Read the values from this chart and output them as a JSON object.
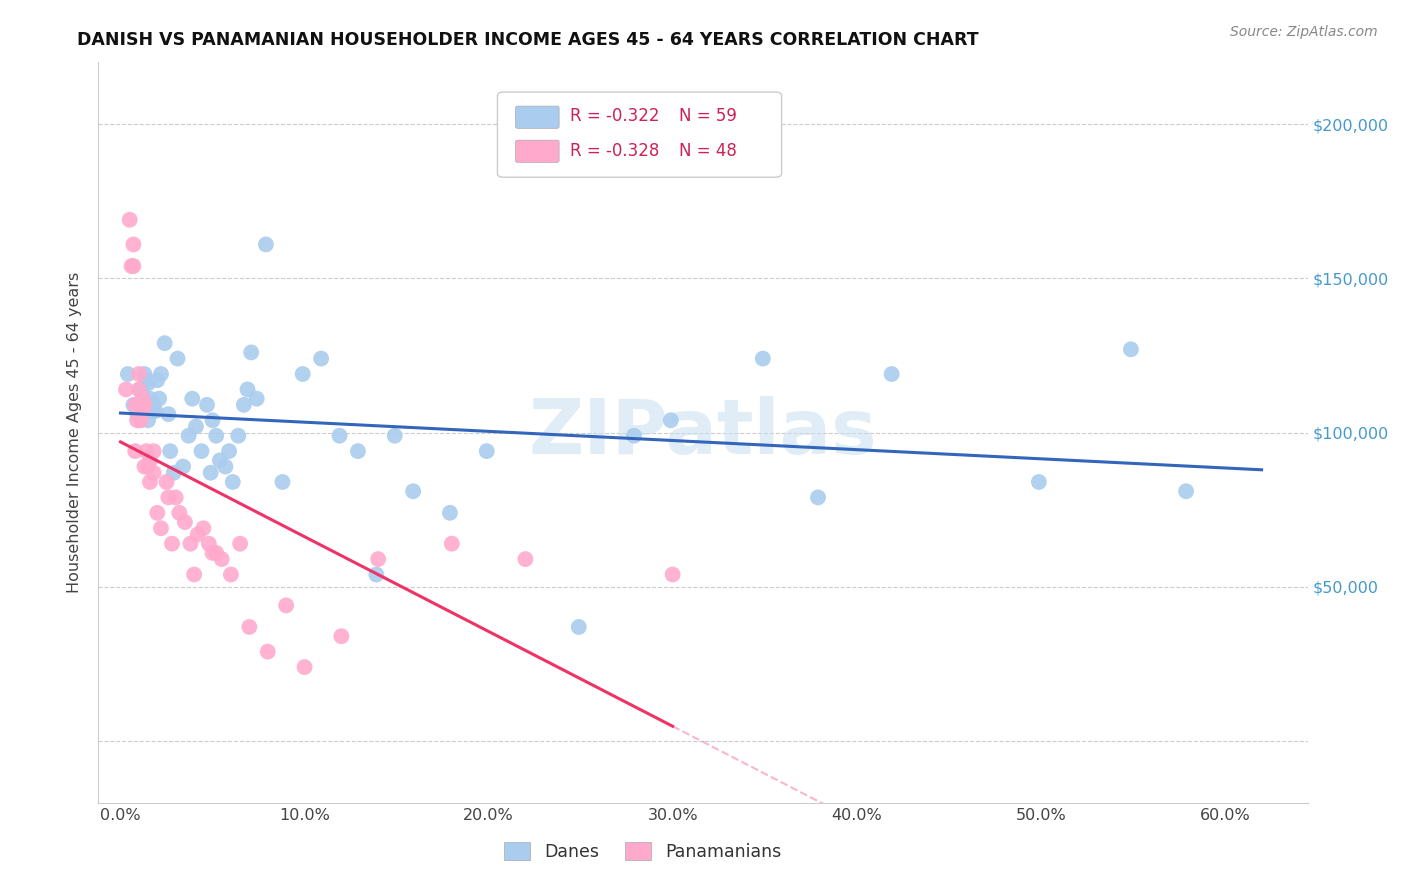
{
  "title": "DANISH VS PANAMANIAN HOUSEHOLDER INCOME AGES 45 - 64 YEARS CORRELATION CHART",
  "source": "Source: ZipAtlas.com",
  "ylabel": "Householder Income Ages 45 - 64 years",
  "xlabel_ticks": [
    "0.0%",
    "10.0%",
    "20.0%",
    "30.0%",
    "40.0%",
    "50.0%",
    "60.0%"
  ],
  "xlabel_vals": [
    0.0,
    0.1,
    0.2,
    0.3,
    0.4,
    0.5,
    0.6
  ],
  "ylabel_ticks": [
    "$50,000",
    "$100,000",
    "$150,000",
    "$200,000"
  ],
  "ylabel_vals": [
    50000,
    100000,
    150000,
    200000
  ],
  "ylim": [
    -20000,
    220000
  ],
  "xlim": [
    -0.012,
    0.645
  ],
  "danes_R": "-0.322",
  "danes_N": "59",
  "panamanians_R": "-0.328",
  "panamanians_N": "48",
  "danes_color": "#aaccee",
  "danes_line_color": "#3366bb",
  "panamanians_color": "#ffaacc",
  "panamanians_line_color": "#ee3366",
  "background_color": "#ffffff",
  "grid_color": "#cccccc",
  "danes_x": [
    0.004,
    0.007,
    0.009,
    0.011,
    0.012,
    0.013,
    0.014,
    0.015,
    0.015,
    0.016,
    0.017,
    0.018,
    0.019,
    0.02,
    0.021,
    0.022,
    0.024,
    0.026,
    0.027,
    0.029,
    0.031,
    0.034,
    0.037,
    0.039,
    0.041,
    0.044,
    0.047,
    0.049,
    0.05,
    0.052,
    0.054,
    0.057,
    0.059,
    0.061,
    0.064,
    0.067,
    0.069,
    0.071,
    0.074,
    0.079,
    0.088,
    0.099,
    0.109,
    0.119,
    0.129,
    0.139,
    0.149,
    0.159,
    0.179,
    0.199,
    0.249,
    0.279,
    0.299,
    0.349,
    0.379,
    0.419,
    0.499,
    0.549,
    0.579
  ],
  "danes_y": [
    119000,
    109000,
    106000,
    114000,
    112000,
    119000,
    117000,
    116000,
    104000,
    111000,
    107000,
    109000,
    107000,
    117000,
    111000,
    119000,
    129000,
    106000,
    94000,
    87000,
    124000,
    89000,
    99000,
    111000,
    102000,
    94000,
    109000,
    87000,
    104000,
    99000,
    91000,
    89000,
    94000,
    84000,
    99000,
    109000,
    114000,
    126000,
    111000,
    161000,
    84000,
    119000,
    124000,
    99000,
    94000,
    54000,
    99000,
    81000,
    74000,
    94000,
    37000,
    99000,
    104000,
    124000,
    79000,
    119000,
    84000,
    127000,
    81000
  ],
  "panamanians_x": [
    0.003,
    0.005,
    0.006,
    0.007,
    0.007,
    0.008,
    0.008,
    0.009,
    0.01,
    0.01,
    0.011,
    0.012,
    0.012,
    0.013,
    0.013,
    0.014,
    0.015,
    0.016,
    0.016,
    0.018,
    0.018,
    0.02,
    0.022,
    0.025,
    0.026,
    0.028,
    0.03,
    0.032,
    0.035,
    0.038,
    0.04,
    0.042,
    0.045,
    0.048,
    0.05,
    0.052,
    0.055,
    0.06,
    0.065,
    0.07,
    0.08,
    0.09,
    0.1,
    0.12,
    0.14,
    0.18,
    0.22,
    0.3
  ],
  "panamanians_y": [
    114000,
    169000,
    154000,
    154000,
    161000,
    109000,
    94000,
    104000,
    119000,
    114000,
    104000,
    107000,
    111000,
    109000,
    89000,
    94000,
    89000,
    84000,
    91000,
    87000,
    94000,
    74000,
    69000,
    84000,
    79000,
    64000,
    79000,
    74000,
    71000,
    64000,
    54000,
    67000,
    69000,
    64000,
    61000,
    61000,
    59000,
    54000,
    64000,
    37000,
    29000,
    44000,
    24000,
    34000,
    59000,
    64000,
    59000,
    54000
  ]
}
